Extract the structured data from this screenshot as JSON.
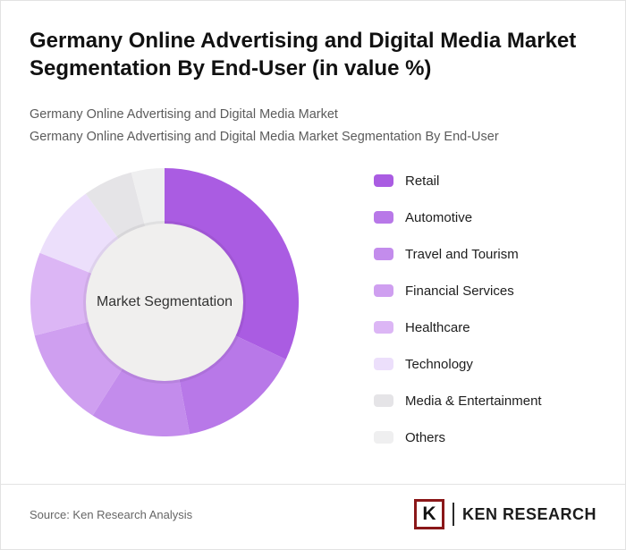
{
  "page": {
    "title": "Germany Online Advertising and Digital Media Market Segmentation By End-User (in value %)",
    "subtitle1": "Germany Online Advertising and Digital Media Market",
    "subtitle2": "Germany Online Advertising and Digital Media Market Segmentation By End-User",
    "source": "Source: Ken Research Analysis",
    "brand": {
      "logo_letter": "K",
      "name": "KEN RESEARCH"
    }
  },
  "chart_data": {
    "type": "pie",
    "donut": true,
    "center_label": "Market Segmentation",
    "units": "value %",
    "start_angle": "top",
    "direction": "clockwise",
    "legend_position": "right",
    "categories": [
      "Retail",
      "Automotive",
      "Travel and Tourism",
      "Financial Services",
      "Healthcare",
      "Technology",
      "Media & Entertainment",
      "Others"
    ],
    "values": [
      32,
      15,
      12,
      12,
      10,
      9,
      6,
      4
    ],
    "colors": [
      "#aa5ce2",
      "#b878e8",
      "#c38cec",
      "#cf9ff0",
      "#dcb6f5",
      "#ecdffb",
      "#e5e4e7",
      "#efeff0"
    ],
    "center_fill": "#f0efee"
  }
}
